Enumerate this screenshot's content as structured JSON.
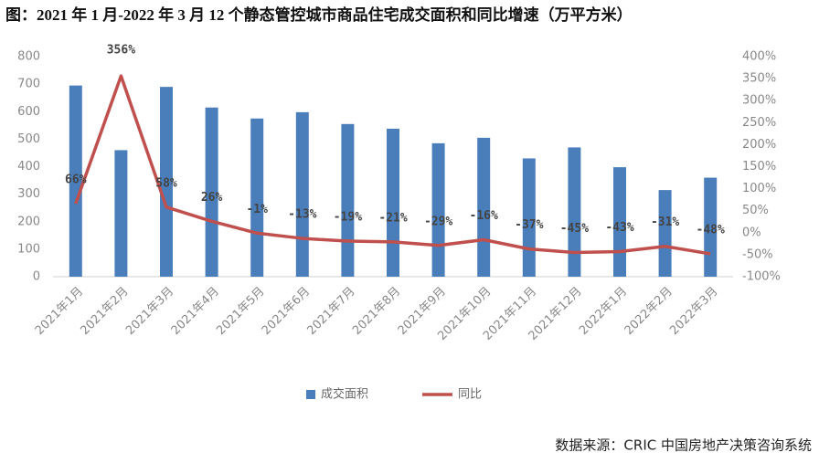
{
  "chart_data": {
    "type": "combo",
    "title": "图：2021 年 1 月-2022 年 3 月 12 个静态管控城市商品住宅成交面积和同比增速（万平方米）",
    "source": "数据来源：CRIC 中国房地产决策咨询系统",
    "categories": [
      "2021年1月",
      "2021年2月",
      "2021年3月",
      "2021年4月",
      "2021年5月",
      "2021年6月",
      "2021年7月",
      "2021年8月",
      "2021年9月",
      "2021年10月",
      "2021年11月",
      "2021年12月",
      "2022年1月",
      "2022年2月",
      "2022年3月"
    ],
    "series": [
      {
        "name": "成交面积",
        "type": "bar",
        "color": "#4a7ebb",
        "values": [
          695,
          460,
          690,
          615,
          575,
          598,
          555,
          538,
          485,
          505,
          430,
          470,
          398,
          315,
          360
        ]
      },
      {
        "name": "同比",
        "type": "line",
        "axis": "y2",
        "color": "#c0504d",
        "values": [
          66,
          356,
          58,
          26,
          -1,
          -13,
          -19,
          -21,
          -29,
          -16,
          -37,
          -45,
          -43,
          -31,
          -48
        ],
        "value_labels": [
          "66%",
          "356%",
          "58%",
          "26%",
          "-1%",
          "-13%",
          "-19%",
          "-21%",
          "-29%",
          "-16%",
          "-37%",
          "-45%",
          "-43%",
          "-31%",
          "-48%"
        ]
      }
    ],
    "ylim": [
      0,
      800
    ],
    "yticks": [
      0,
      100,
      200,
      300,
      400,
      500,
      600,
      700,
      800
    ],
    "y2lim": [
      -100,
      400
    ],
    "y2ticks": [
      {
        "value": -100,
        "label": "-100%"
      },
      {
        "value": -50,
        "label": "-50%"
      },
      {
        "value": 0,
        "label": "0%"
      },
      {
        "value": 50,
        "label": "50%"
      },
      {
        "value": 100,
        "label": "100%"
      },
      {
        "value": 150,
        "label": "150%"
      },
      {
        "value": 200,
        "label": "200%"
      },
      {
        "value": 250,
        "label": "250%"
      },
      {
        "value": 300,
        "label": "300%"
      },
      {
        "value": 350,
        "label": "350%"
      },
      {
        "value": 400,
        "label": "400%"
      }
    ],
    "grid": false
  }
}
